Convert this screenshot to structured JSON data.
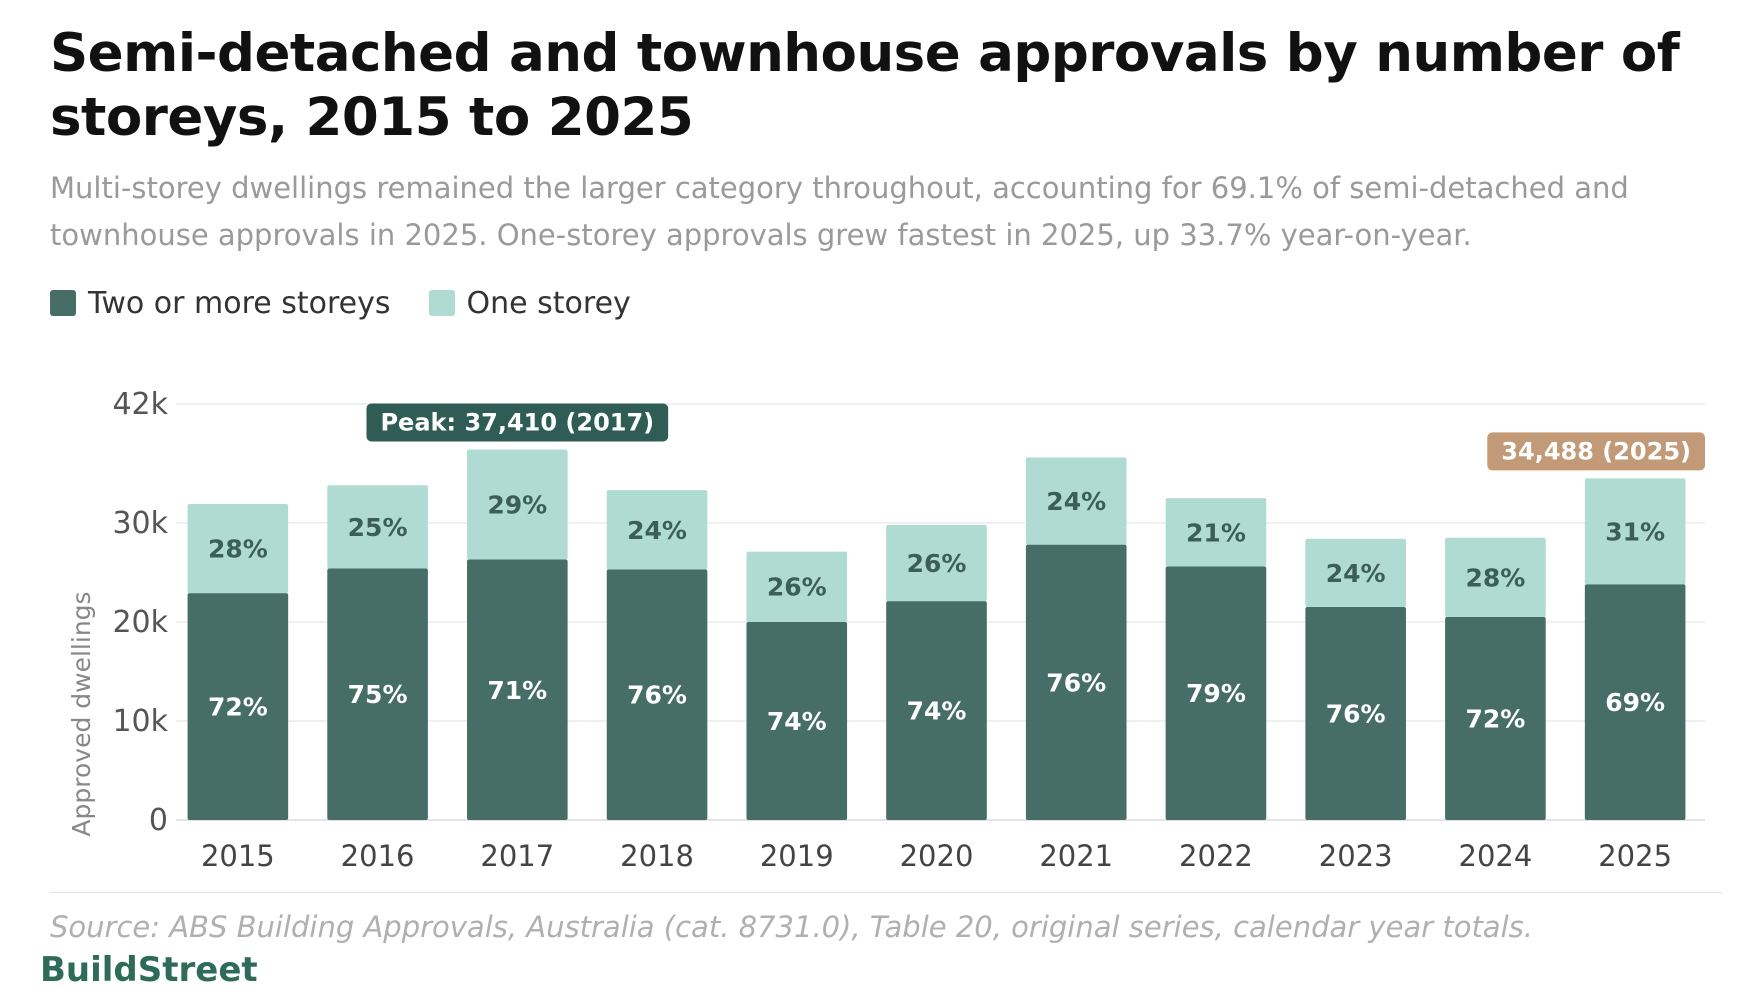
{
  "title": "Semi-detached and townhouse approvals by number of storeys, 2015 to 2025",
  "subtitle": "Multi-storey dwellings remained the larger category throughout, accounting for 69.1% of semi-detached and townhouse approvals in 2025. One-storey approvals grew fastest in 2025, up 33.7% year-on-year.",
  "source": "Source: ABS Building Approvals, Australia (cat. 8731.0), Table 20, original series, calendar year totals.",
  "brand": "BuildStreet",
  "colors": {
    "two_or_more": "#466e67",
    "one_storey": "#b0dbd3",
    "peak_callout": "#2f5d55",
    "latest_callout": "#c29a78"
  },
  "chart_data": {
    "type": "bar",
    "stacked": true,
    "categories": [
      "2015",
      "2016",
      "2017",
      "2018",
      "2019",
      "2020",
      "2021",
      "2022",
      "2023",
      "2024",
      "2025"
    ],
    "series": [
      {
        "name": "Two or more storeys",
        "values": [
          22900,
          25400,
          26300,
          25300,
          20000,
          22100,
          27800,
          25600,
          21500,
          20500,
          23800
        ],
        "labels": [
          "72%",
          "75%",
          "71%",
          "76%",
          "74%",
          "74%",
          "76%",
          "79%",
          "76%",
          "72%",
          "69%"
        ]
      },
      {
        "name": "One storey",
        "values": [
          9000,
          8400,
          11110,
          8000,
          7100,
          7700,
          8800,
          6900,
          6900,
          8000,
          10688
        ],
        "labels": [
          "28%",
          "25%",
          "29%",
          "24%",
          "26%",
          "26%",
          "24%",
          "21%",
          "24%",
          "28%",
          "31%"
        ]
      }
    ],
    "ylabel": "Approved dwellings",
    "xlabel": "",
    "ylim": [
      0,
      42000
    ],
    "yticks": [
      0,
      10000,
      20000,
      30000,
      42000
    ],
    "ytick_labels": [
      "0",
      "10k",
      "20k",
      "30k",
      "42k"
    ],
    "grid": true,
    "legend": "top-left",
    "annotations": [
      {
        "text": "Peak: 37,410 (2017)",
        "category": "2017",
        "value": 37410,
        "style": "peak"
      },
      {
        "text": "34,488 (2025)",
        "category": "2025",
        "value": 34488,
        "style": "latest"
      }
    ]
  }
}
